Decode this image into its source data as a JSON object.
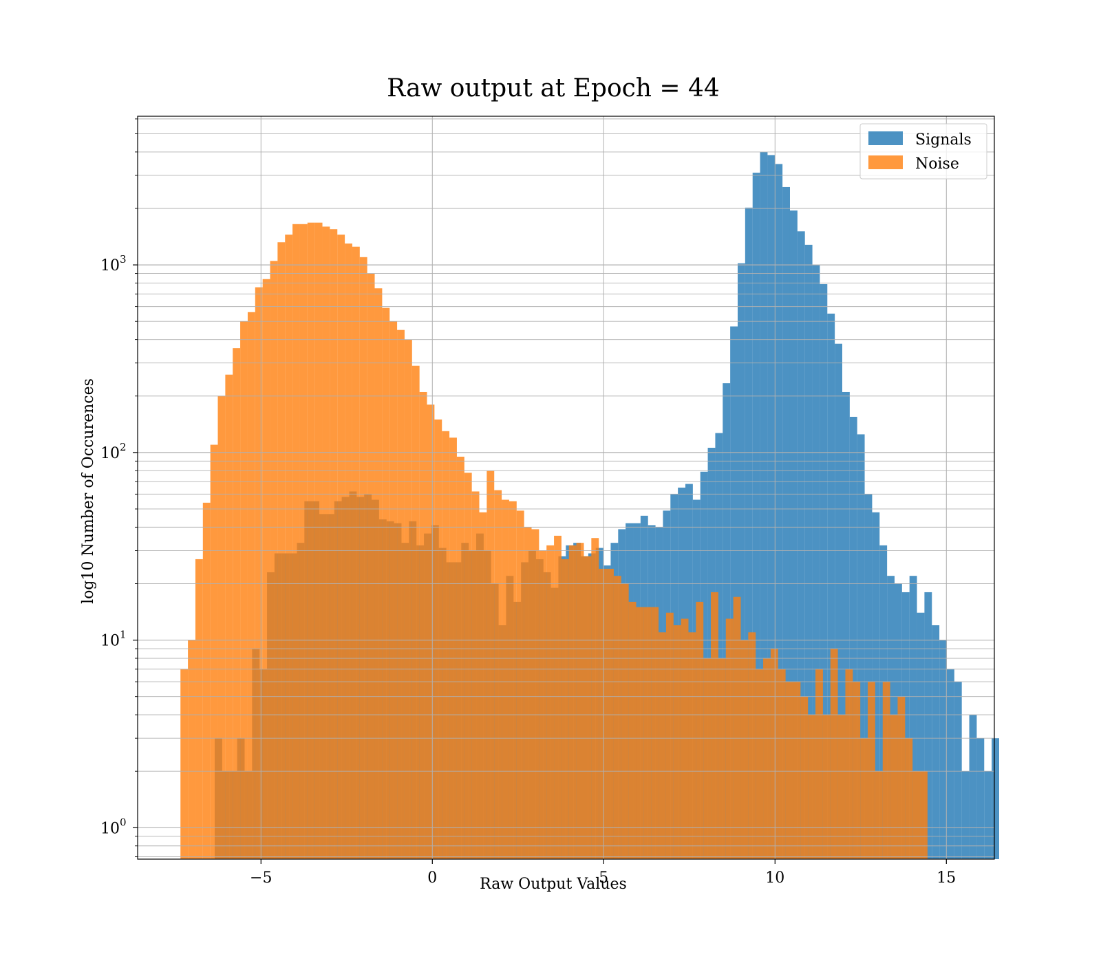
{
  "chart_data": {
    "type": "bar",
    "title": "Raw output at Epoch = 44",
    "xlabel": "Raw Output Values",
    "ylabel": "log10 Number of Occurences",
    "xlim": [
      -8.6,
      16.4
    ],
    "ylim": [
      0.68,
      6200
    ],
    "yscale": "log",
    "grid": true,
    "legend": "top-right",
    "x_ticks": [
      {
        "value": -5,
        "label": "−5"
      },
      {
        "value": 0,
        "label": "0"
      },
      {
        "value": 5,
        "label": "5"
      },
      {
        "value": 10,
        "label": "10"
      },
      {
        "value": 15,
        "label": "15"
      }
    ],
    "y_ticks": [
      {
        "value": 1,
        "base": "10",
        "exp": "0"
      },
      {
        "value": 10,
        "base": "10",
        "exp": "1"
      },
      {
        "value": 100,
        "base": "10",
        "exp": "2"
      },
      {
        "value": 1000,
        "base": "10",
        "exp": "3"
      }
    ],
    "series": [
      {
        "name": "Signals",
        "color": "#1f77b4",
        "opacity": 0.8,
        "bin_start": -6.35,
        "bin_width": 0.218,
        "values": [
          3,
          2,
          2,
          3,
          2,
          9,
          7,
          23,
          29,
          29,
          29,
          33,
          55,
          55,
          47,
          47,
          55,
          58,
          62,
          58,
          60,
          56,
          44,
          43,
          42,
          33,
          43,
          32,
          37,
          41,
          31,
          26,
          26,
          33,
          30,
          37,
          30,
          20,
          12,
          22,
          16,
          26,
          30,
          27,
          23,
          19,
          28,
          32,
          33,
          28,
          29,
          31,
          25,
          33,
          39,
          42,
          42,
          46,
          41,
          40,
          49,
          60,
          65,
          68,
          56,
          79,
          106,
          127,
          234,
          470,
          1020,
          2020,
          3100,
          4000,
          3850,
          3450,
          2600,
          1950,
          1510,
          1280,
          1000,
          790,
          550,
          380,
          210,
          155,
          125,
          60,
          48,
          32,
          22,
          20,
          18,
          22,
          14,
          18,
          12,
          10,
          7,
          6,
          2,
          4,
          3,
          2,
          3
        ]
      },
      {
        "name": "Noise",
        "color": "#ff7f0e",
        "opacity": 0.8,
        "bin_start": -7.35,
        "bin_width": 0.218,
        "values": [
          7,
          10,
          27,
          54,
          110,
          200,
          260,
          360,
          500,
          560,
          760,
          840,
          1050,
          1320,
          1450,
          1650,
          1650,
          1680,
          1680,
          1600,
          1550,
          1450,
          1300,
          1250,
          1100,
          900,
          750,
          590,
          500,
          450,
          400,
          290,
          210,
          180,
          150,
          130,
          120,
          95,
          78,
          62,
          48,
          80,
          63,
          56,
          55,
          49,
          40,
          39,
          30,
          32,
          36,
          27,
          32,
          33,
          28,
          35,
          24,
          24,
          22,
          20,
          16,
          15,
          15,
          15,
          11,
          14,
          12,
          13,
          11,
          16,
          8,
          18,
          8,
          13,
          17,
          10,
          11,
          7,
          8,
          9,
          7,
          6,
          6,
          5,
          4,
          7,
          4,
          9,
          4,
          7,
          6,
          3,
          6,
          2,
          6,
          4,
          5,
          3,
          2,
          2
        ]
      }
    ]
  }
}
